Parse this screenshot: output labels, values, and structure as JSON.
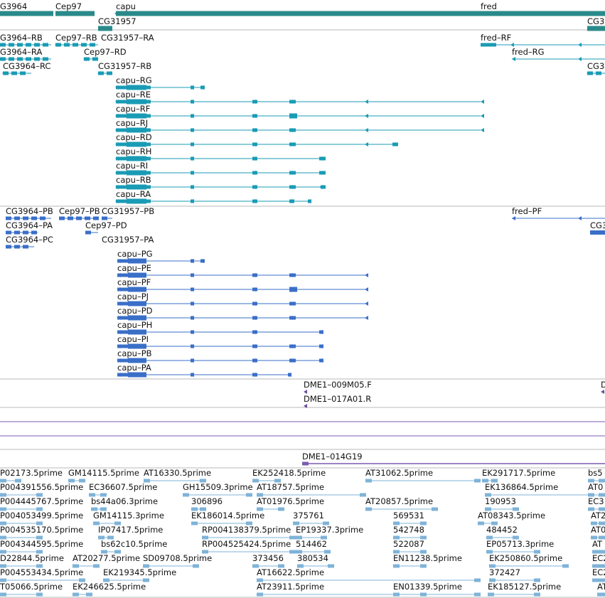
{
  "colors": {
    "gene": "#2a8a8a",
    "rna": "#1a9bb5",
    "protein": "#3a6fc8",
    "oligo": "#6b4e9e",
    "bac": "#7a5ab0",
    "est": "#7fb3d8",
    "divider": "#b8b8b8"
  },
  "genes": [
    {
      "label": "G3964"
    },
    {
      "label": "Cep97"
    },
    {
      "label": "capu"
    },
    {
      "label": "fred"
    },
    {
      "label": "CG31957"
    },
    {
      "label": "CG3"
    }
  ],
  "transcripts": [
    {
      "label": "G3964–RB"
    },
    {
      "label": "Cep97–RB"
    },
    {
      "label": "CG31957–RA"
    },
    {
      "label": "fred–RF"
    },
    {
      "label": "G3964–RA"
    },
    {
      "label": "Cep97–RD"
    },
    {
      "label": "fred–RG"
    },
    {
      "label": "CG3964–RC"
    },
    {
      "label": "CG31957–RB"
    },
    {
      "label": "CG3"
    },
    {
      "label": "capu–RG"
    },
    {
      "label": "capu–RE"
    },
    {
      "label": "capu–RF"
    },
    {
      "label": "capu–RJ"
    },
    {
      "label": "capu–RD"
    },
    {
      "label": "capu–RH"
    },
    {
      "label": "capu–RI"
    },
    {
      "label": "capu–RB"
    },
    {
      "label": "capu–RA"
    }
  ],
  "proteins": [
    {
      "label": "CG3964–PB"
    },
    {
      "label": "Cep97–PB"
    },
    {
      "label": "CG31957–PB"
    },
    {
      "label": "fred–PF"
    },
    {
      "label": "CG3964–PA"
    },
    {
      "label": "Cep97–PD"
    },
    {
      "label": "CG3"
    },
    {
      "label": "CG3964–PC"
    },
    {
      "label": "CG31957–PA"
    },
    {
      "label": "capu–PG"
    },
    {
      "label": "capu–PE"
    },
    {
      "label": "capu–PF"
    },
    {
      "label": "capu–PJ"
    },
    {
      "label": "capu–PD"
    },
    {
      "label": "capu–PH"
    },
    {
      "label": "capu–PI"
    },
    {
      "label": "capu–PB"
    },
    {
      "label": "capu–PA"
    }
  ],
  "oligos": [
    {
      "label": "DME1–009M05.F"
    },
    {
      "label": "DME1–017A01.R"
    },
    {
      "label": "D"
    }
  ],
  "bac": {
    "label": "DME1–014G19"
  },
  "ests": [
    "P02173.5prime",
    "GM14115.5prime",
    "AT16330.5prime",
    "EK252418.5prime",
    "AT31062.5prime",
    "EK291717.5prime",
    "bs5",
    "P004391556.5prime",
    "EC36607.5prime",
    "GH15509.3prime",
    "AT18757.5prime",
    "EK136864.5prime",
    "AT0",
    "P004445767.5prime",
    "bs44a06.3prime",
    "306896",
    "AT01976.5prime",
    "AT20857.5prime",
    "190953",
    "EC3",
    "P004053499.5prime",
    "GM14115.3prime",
    "EK186014.5prime",
    "375761",
    "569531",
    "AT08343.5prime",
    "AT2",
    "P004535170.5prime",
    "IP07417.5prime",
    "RP004138379.5prime",
    "EP19337.3prime",
    "542748",
    "484452",
    "AT0",
    "P004344595.5prime",
    "bs62c10.5prime",
    "RP004525424.5prime",
    "514462",
    "522087",
    "EP05713.3prime",
    "AT",
    "D22844.5prime",
    "AT20277.5prime",
    "SD09708.5prime",
    "373456",
    "380534",
    "EN11238.5prime",
    "EK250860.5prime",
    "EC2",
    "P004553434.5prime",
    "EK219345.5prime",
    "AT16622.5prime",
    "372427",
    "EC2",
    "T05066.5prime",
    "EK246625.5prime",
    "AT23911.5prime",
    "EN01339.5prime",
    "EK185127.5prime",
    "AT"
  ]
}
